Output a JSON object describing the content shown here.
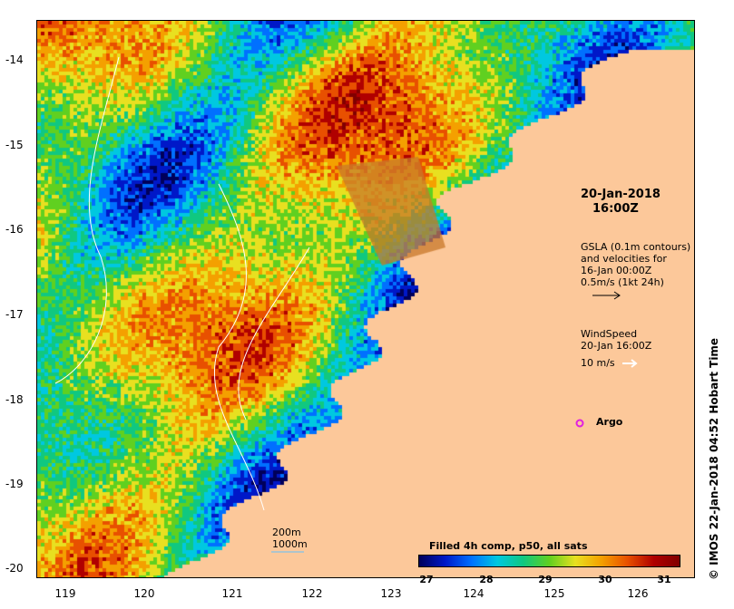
{
  "map": {
    "y_ticks": [
      "-14",
      "-15",
      "-16",
      "-17",
      "-18",
      "-19",
      "-20"
    ],
    "x_ticks": [
      "119",
      "120",
      "121",
      "122",
      "123",
      "124",
      "125",
      "126"
    ],
    "colors": {
      "land": "#fcc89a",
      "sea_warm": "#a00000",
      "sea_cool": "#0018c8",
      "gsla_contour": "#ffffff",
      "arrow": "#ffffff",
      "argo": "#e020e0"
    }
  },
  "annotations": {
    "date_line1": "20-Jan-2018",
    "date_line2": "16:00Z",
    "gsla_line1": "GSLA (0.1m contours)",
    "gsla_line2": "and velocities for",
    "gsla_line3": "16-Jan 00:00Z",
    "gsla_line4": "0.5m/s (1kt 24h)",
    "wind_line1": "WindSpeed",
    "wind_line2": "20-Jan 16:00Z",
    "wind_line3": "10 m/s",
    "argo": "Argo",
    "depth_200": "200m",
    "depth_1000": "1000m"
  },
  "colorbar": {
    "title": "Filled 4h comp, p50, all sats",
    "ticks": [
      "27",
      "28",
      "29",
      "30",
      "31"
    ]
  },
  "credit": "© IMOS 22-Jan-2018 04:52 Hobart Time"
}
